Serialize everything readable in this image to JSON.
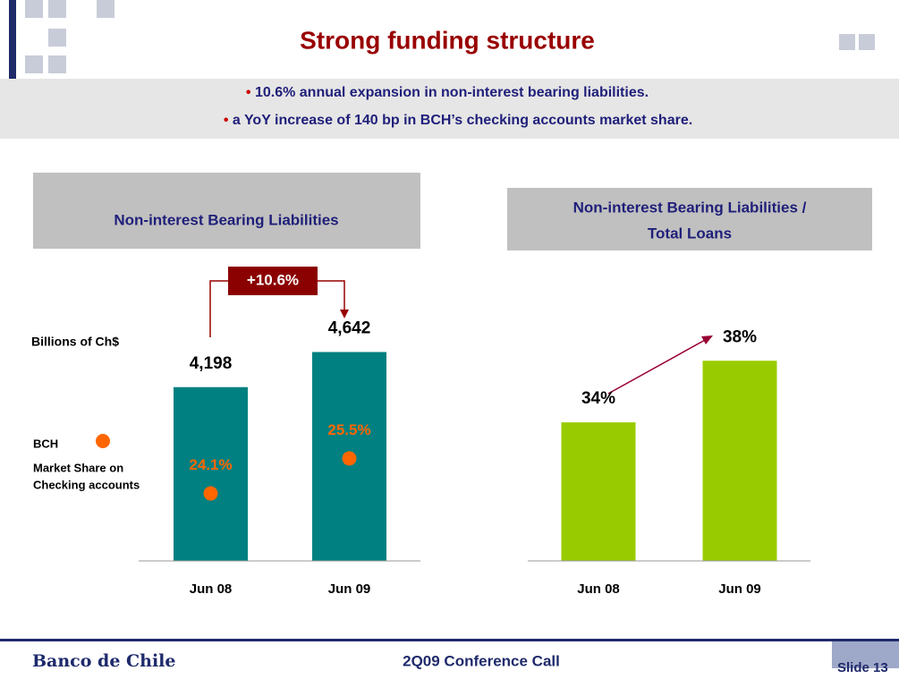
{
  "header": {
    "title": "Strong funding structure",
    "bullets": [
      "10.6% annual expansion in non-interest bearing liabilities.",
      "a YoY increase of 140 bp in BCH’s checking accounts market share."
    ]
  },
  "chart_data": [
    {
      "type": "bar",
      "title": "Non-interest Bearing Liabilities",
      "unit_label": "Billions of Ch$",
      "annotation": "+10.6%",
      "categories": [
        "Jun 08",
        "Jun 09"
      ],
      "ylim": [
        2000,
        5700
      ],
      "y2lim": [
        21.4,
        33.1
      ],
      "series": [
        {
          "color": "#008080",
          "values": [
            4198,
            4642
          ],
          "value_labels": [
            "4,198",
            "4,642"
          ]
        },
        {
          "name": "BCH",
          "description_lines": [
            "Market Share on",
            "Checking accounts"
          ],
          "type": "dot",
          "axis": "y2",
          "color": "#ff6600",
          "values": [
            24.1,
            25.5
          ],
          "value_labels": [
            "24.1%",
            "25.5%"
          ]
        }
      ]
    },
    {
      "type": "bar",
      "title_lines": [
        "Non-interest Bearing Liabilities /",
        "Total Loans"
      ],
      "categories": [
        "Jun 08",
        "Jun 09"
      ],
      "ylim": [
        25,
        44
      ],
      "series": [
        {
          "color": "#99cc00",
          "values": [
            34,
            38
          ],
          "value_labels": [
            "34%",
            "38%"
          ]
        }
      ]
    }
  ],
  "footer": {
    "bank": "Banco de Chile",
    "event": "2Q09 Conference Call",
    "slide": "Slide 13"
  }
}
